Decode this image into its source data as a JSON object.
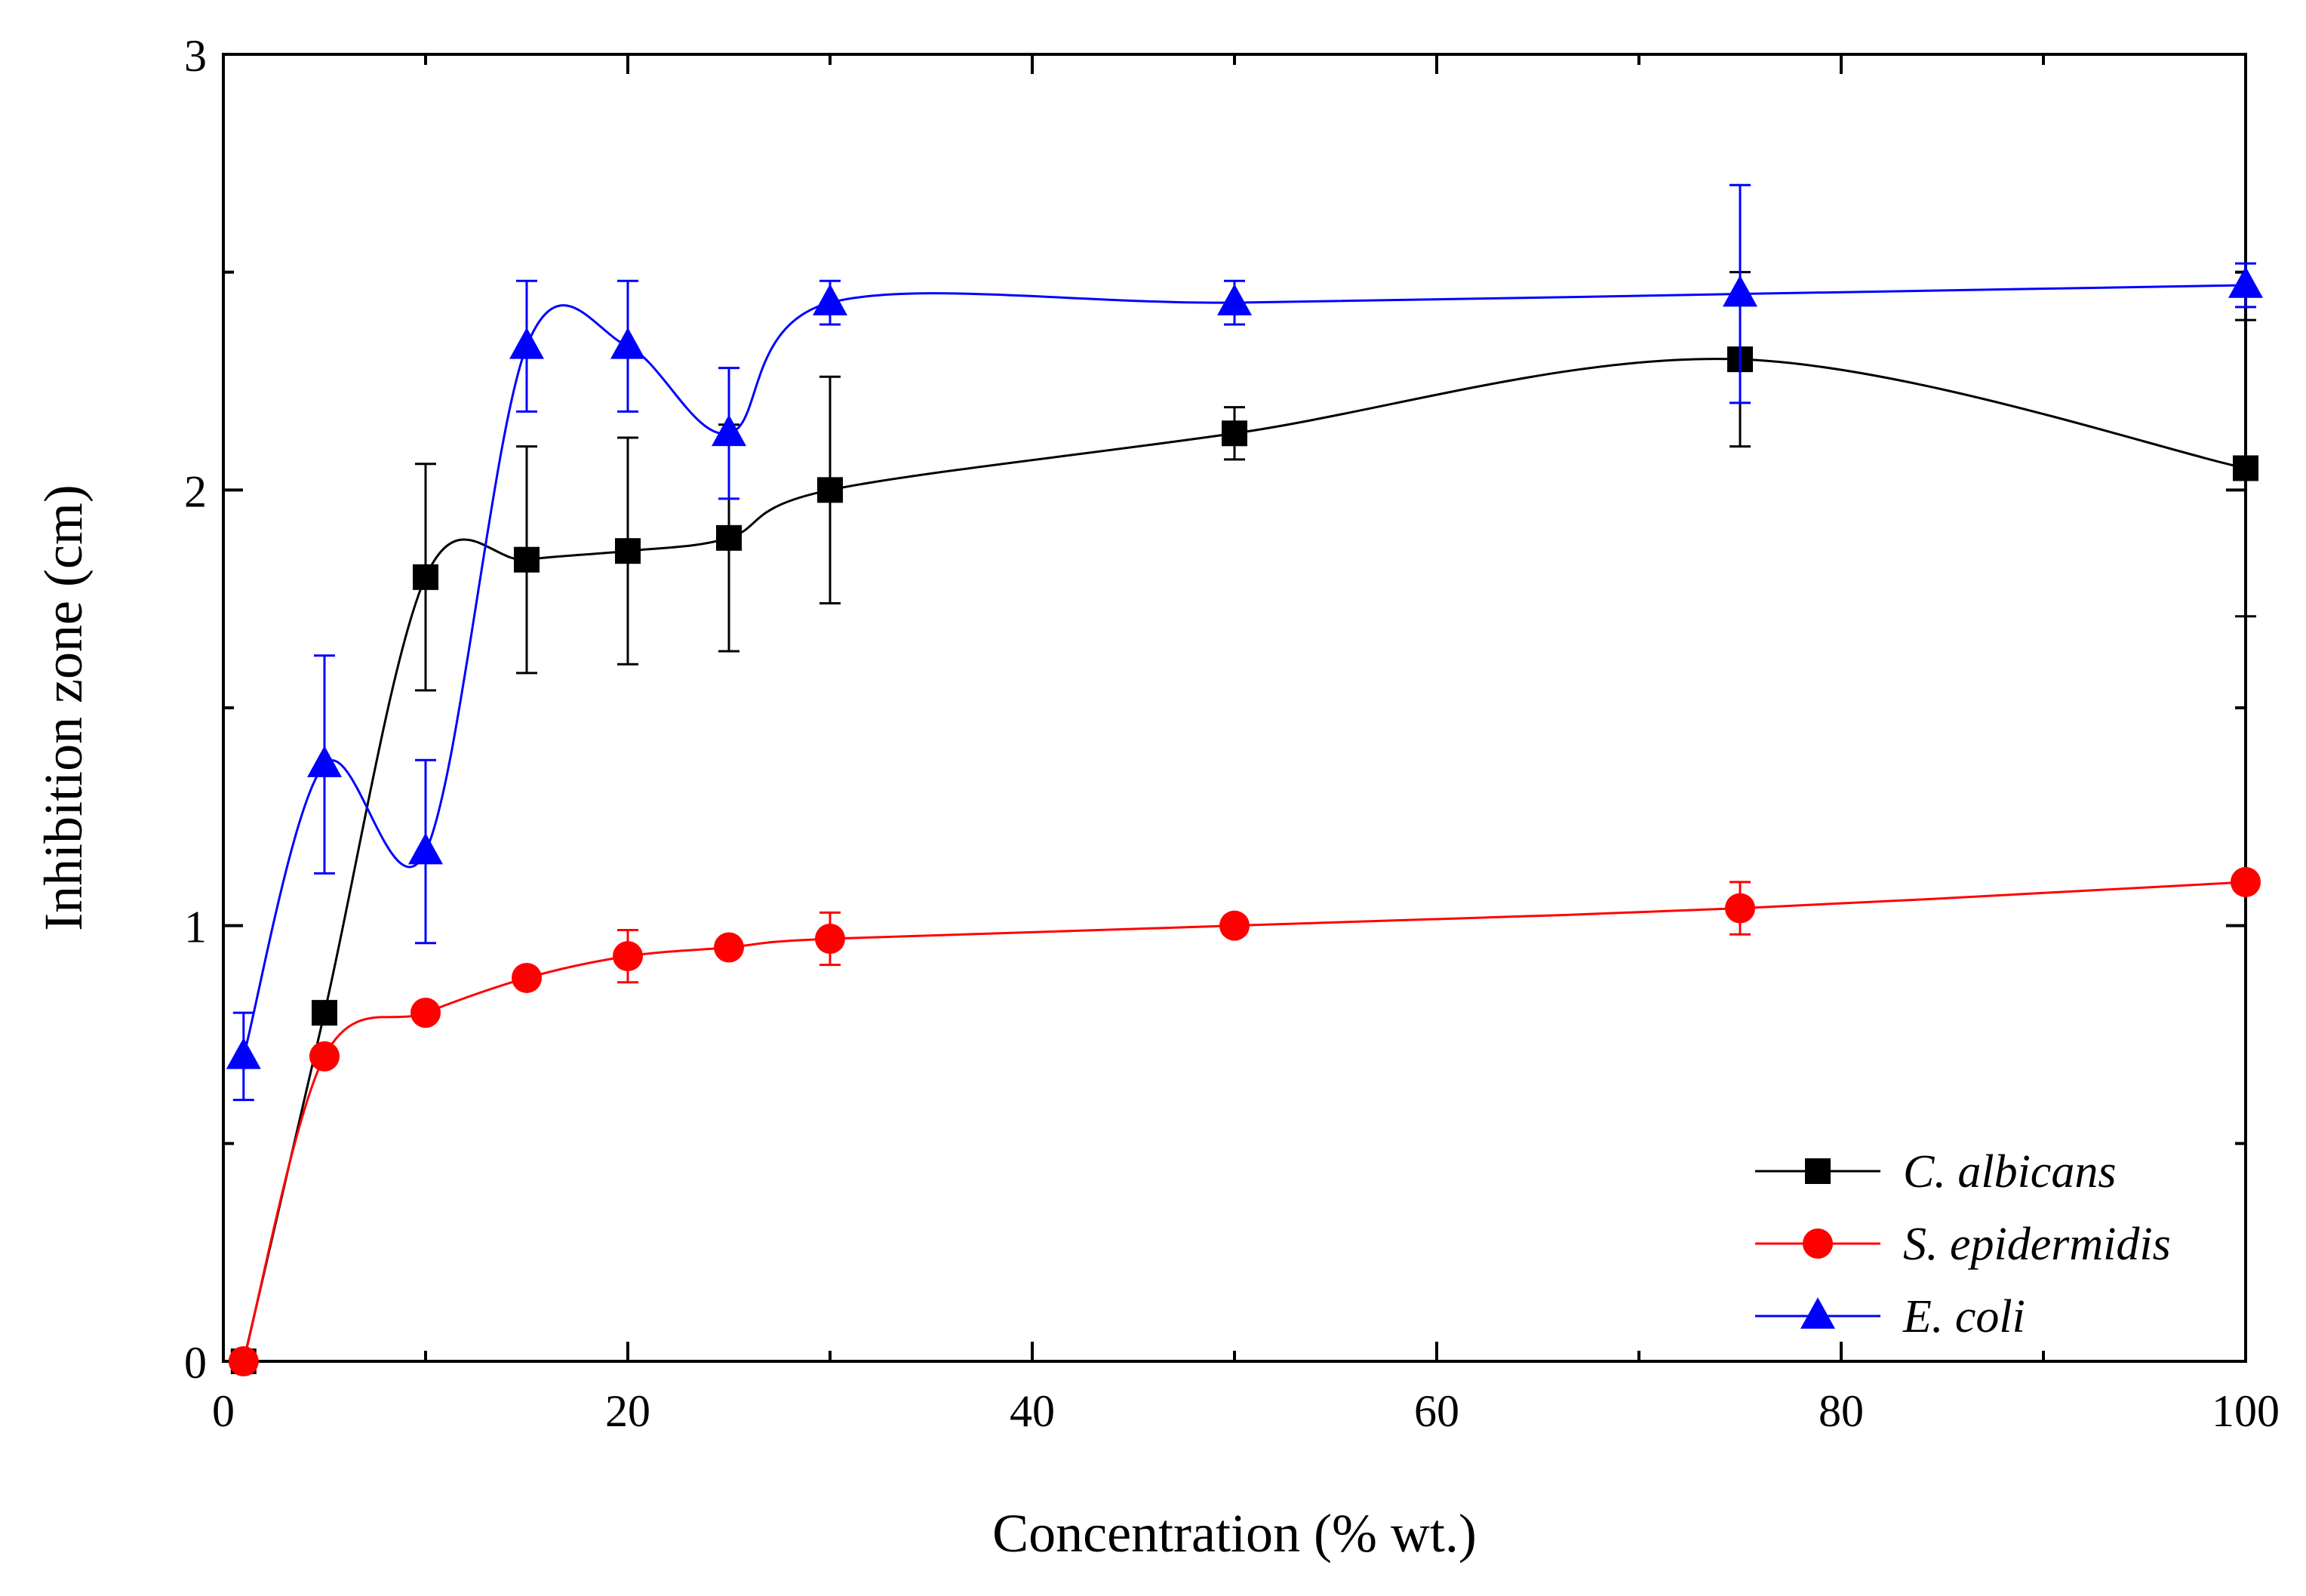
{
  "chart_data": {
    "type": "scatter",
    "xlabel": "Concentration (% wt.)",
    "ylabel": "Inhibition zone (cm)",
    "xlim": [
      0,
      100
    ],
    "ylim": [
      0,
      3
    ],
    "xticks": [
      0,
      20,
      40,
      60,
      80,
      100
    ],
    "xtick_labels": [
      "0",
      "20",
      "40",
      "60",
      "80",
      "100"
    ],
    "yticks": [
      0,
      1,
      2,
      3
    ],
    "ytick_labels": [
      "0",
      "1",
      "2",
      "3"
    ],
    "x_minor_ticks": [
      10,
      30,
      50,
      70,
      90
    ],
    "y_minor_ticks": [
      0.5,
      1.5,
      2.5
    ],
    "grid": false,
    "legend_position": "bottom-right",
    "series": [
      {
        "name": "C. albicans",
        "color": "#000000",
        "marker": "square",
        "x": [
          1,
          5,
          10,
          15,
          20,
          25,
          30,
          50,
          75,
          100
        ],
        "y": [
          0,
          0.8,
          1.8,
          1.84,
          1.86,
          1.89,
          2.0,
          2.13,
          2.3,
          2.05
        ],
        "error": [
          0,
          0,
          0.26,
          0.26,
          0.26,
          0.26,
          0.26,
          0.06,
          0.2,
          0.34
        ]
      },
      {
        "name": "S. epidermidis",
        "color": "#ff0000",
        "marker": "circle",
        "x": [
          1,
          5,
          10,
          15,
          20,
          25,
          30,
          50,
          75,
          100
        ],
        "y": [
          0,
          0.7,
          0.8,
          0.88,
          0.93,
          0.95,
          0.97,
          1.0,
          1.04,
          1.1
        ],
        "error": [
          0,
          0,
          0,
          0,
          0.06,
          0,
          0.06,
          0,
          0.06,
          0
        ]
      },
      {
        "name": "E. coli",
        "color": "#0000ff",
        "marker": "triangle",
        "x": [
          1,
          5,
          10,
          15,
          20,
          25,
          30,
          50,
          75,
          100
        ],
        "y": [
          0.7,
          1.37,
          1.17,
          2.33,
          2.33,
          2.13,
          2.43,
          2.43,
          2.45,
          2.47
        ],
        "error": [
          0.1,
          0.25,
          0.21,
          0.15,
          0.15,
          0.15,
          0.05,
          0.05,
          0.25,
          0.05
        ]
      }
    ]
  }
}
